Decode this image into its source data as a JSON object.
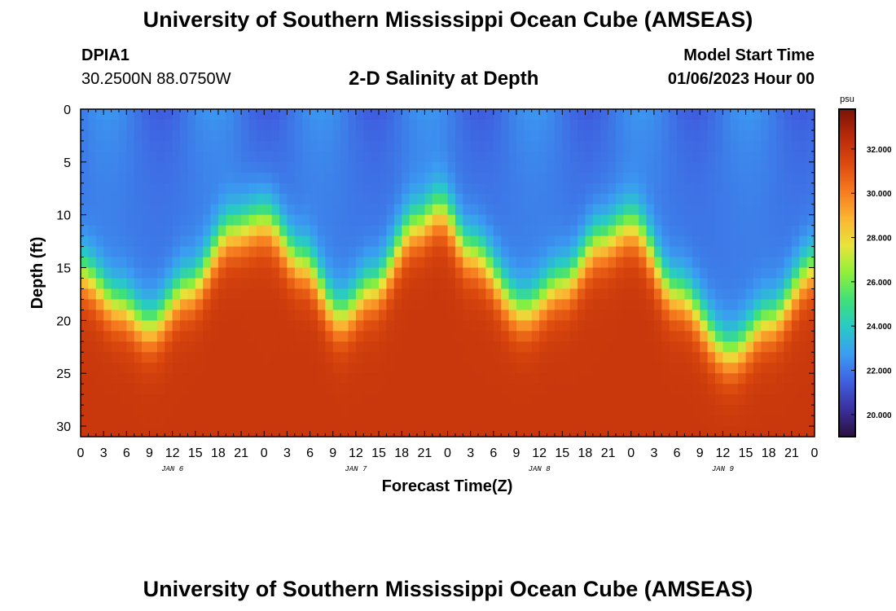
{
  "header": {
    "title": "University of Southern Mississippi Ocean Cube (AMSEAS)",
    "station_id": "DPIA1",
    "coordinates": "30.2500N  88.0750W",
    "subtitle": "2-D Salinity at Depth",
    "model_start_label": "Model Start Time",
    "model_start_value": "01/06/2023 Hour 00"
  },
  "footer": {
    "title": "University of Southern Mississippi Ocean Cube (AMSEAS)"
  },
  "chart_data": {
    "type": "heatmap",
    "title": "2-D Salinity at Depth",
    "xlabel": "Forecast Time(Z)",
    "ylabel": "Depth (ft)",
    "x_range_hours": [
      0,
      96
    ],
    "ylim": [
      0,
      31
    ],
    "y_inverted": true,
    "y_ticks": [
      0,
      5,
      10,
      15,
      20,
      25,
      30
    ],
    "x_tick_labels": [
      "0",
      "3",
      "6",
      "9",
      "12",
      "15",
      "18",
      "21",
      "0",
      "3",
      "6",
      "9",
      "12",
      "15",
      "18",
      "21",
      "0",
      "3",
      "6",
      "9",
      "12",
      "15",
      "18",
      "21",
      "0",
      "3",
      "6",
      "9",
      "12",
      "15",
      "18",
      "21",
      "0"
    ],
    "day_labels": [
      {
        "hour": 12,
        "label": "JAN 6"
      },
      {
        "hour": 36,
        "label": "JAN 7"
      },
      {
        "hour": 60,
        "label": "JAN 8"
      },
      {
        "hour": 84,
        "label": "JAN 9"
      }
    ],
    "colorbar": {
      "unit": "psu",
      "range": [
        19.0,
        33.8
      ],
      "ticks": [
        20,
        22,
        24,
        26,
        28,
        30,
        32
      ],
      "tick_labels": [
        "20.000",
        "22.000",
        "24.000",
        "26.000",
        "28.000",
        "30.000",
        "32.000"
      ],
      "colors": [
        "#2b0f3d",
        "#3a2f9c",
        "#3f5fe0",
        "#3b9cf2",
        "#28c9c8",
        "#3fe07a",
        "#8ef03a",
        "#e8e43a",
        "#fbb432",
        "#f67a1f",
        "#dc4a0e",
        "#b8290a",
        "#7a1406"
      ]
    },
    "halocline_depth_ft_by_hour": [
      [
        0,
        15.5
      ],
      [
        5,
        18.5
      ],
      [
        9,
        20.5
      ],
      [
        14,
        17.0
      ],
      [
        20,
        11.5
      ],
      [
        24,
        10.5
      ],
      [
        29,
        14.5
      ],
      [
        34,
        19.5
      ],
      [
        38,
        17.0
      ],
      [
        44,
        11.0
      ],
      [
        47,
        9.5
      ],
      [
        51,
        13.5
      ],
      [
        58,
        19.0
      ],
      [
        63,
        16.5
      ],
      [
        68,
        12.5
      ],
      [
        72,
        11.0
      ],
      [
        78,
        17.5
      ],
      [
        85,
        23.0
      ],
      [
        90,
        20.0
      ],
      [
        96,
        15.0
      ]
    ],
    "surface_salinity_psu": 22.0,
    "bottom_salinity_psu": 32.0
  }
}
